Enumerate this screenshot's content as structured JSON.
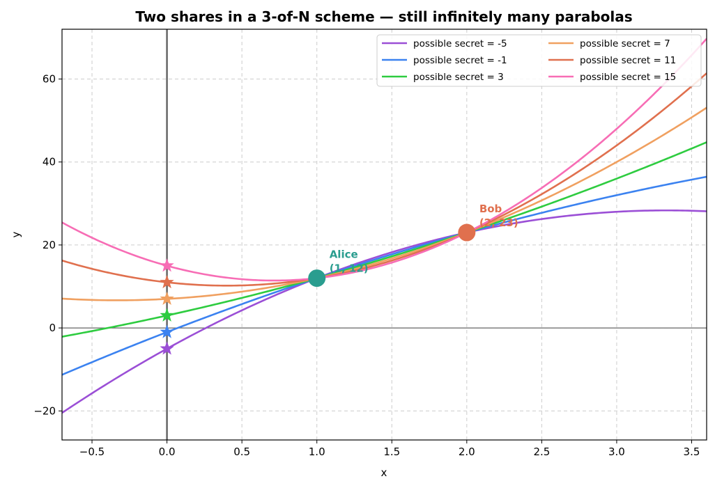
{
  "chart_data": {
    "type": "line",
    "title": "Two shares in a 3-of-N scheme — still infinitely many parabolas",
    "xlabel": "x",
    "ylabel": "y",
    "xlim": [
      -0.7,
      3.6
    ],
    "ylim": [
      -27,
      72
    ],
    "xticks": [
      -0.5,
      0.0,
      0.5,
      1.0,
      1.5,
      2.0,
      2.5,
      3.0,
      3.5
    ],
    "xtick_labels": [
      "−0.5",
      "0.0",
      "0.5",
      "1.0",
      "1.5",
      "2.0",
      "2.5",
      "3.0",
      "3.5"
    ],
    "yticks": [
      -20,
      0,
      20,
      40,
      60
    ],
    "ytick_labels": [
      "−20",
      "0",
      "20",
      "40",
      "60"
    ],
    "grid": true,
    "legend_position": "top-right",
    "legend_columns": 2,
    "series": [
      {
        "name": "possible secret = -5",
        "secret": -5,
        "a": -3,
        "b": 20,
        "color": "#9b4fd6"
      },
      {
        "name": "possible secret = -1",
        "secret": -1,
        "a": -1,
        "b": 14,
        "color": "#3b82f0"
      },
      {
        "name": "possible secret = 3",
        "secret": 3,
        "a": 1,
        "b": 8,
        "color": "#2ecc40"
      },
      {
        "name": "possible secret = 7",
        "secret": 7,
        "a": 3,
        "b": 2,
        "color": "#f0a060"
      },
      {
        "name": "possible secret = 11",
        "secret": 11,
        "a": 5,
        "b": -4,
        "color": "#e0704e"
      },
      {
        "name": "possible secret = 15",
        "secret": 15,
        "a": 7,
        "b": -10,
        "color": "#f76db5"
      }
    ],
    "shares": [
      {
        "name": "Alice",
        "label": "Alice",
        "coords": "(1, 12)",
        "x": 1,
        "y": 12,
        "color": "#2a9d8f"
      },
      {
        "name": "Bob",
        "label": "Bob",
        "coords": "(2, 23)",
        "x": 2,
        "y": 23,
        "color": "#e0704e"
      }
    ]
  }
}
